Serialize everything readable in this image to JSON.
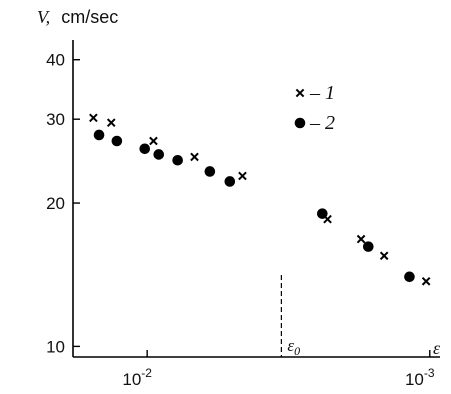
{
  "chart_data": {
    "type": "scatter",
    "title": "",
    "ylabel": {
      "symbol": "V,",
      "unit": "cm/sec"
    },
    "xlabel": {
      "symbol": "ε"
    },
    "x_axis": {
      "scale": "log",
      "reversed": true,
      "range": [
        0.0183,
        0.00092
      ],
      "ticks": [
        {
          "value": 0.01,
          "label_base": "10",
          "label_exp": "-2"
        },
        {
          "value": 0.001,
          "label_base": "10",
          "label_exp": "-3"
        }
      ]
    },
    "y_axis": {
      "scale": "log",
      "range": [
        9.5,
        44
      ],
      "ticks": [
        {
          "value": 10,
          "label": "10"
        },
        {
          "value": 20,
          "label": "20"
        },
        {
          "value": 30,
          "label": "30"
        },
        {
          "value": 40,
          "label": "40"
        }
      ]
    },
    "marker": {
      "value": 0.00335,
      "label_symbol": "ε",
      "label_sub": "0",
      "style": "dashed"
    },
    "legend": {
      "placement": "top-right",
      "entries": [
        {
          "marker": "x",
          "dash": "–",
          "label": "1"
        },
        {
          "marker": "circle",
          "dash": "–",
          "label": "2"
        }
      ]
    },
    "series": [
      {
        "name": "1",
        "marker": "x",
        "points": [
          [
            0.0155,
            30.2
          ],
          [
            0.0134,
            29.5
          ],
          [
            0.0095,
            27.0
          ],
          [
            0.0068,
            25.0
          ],
          [
            0.0046,
            22.8
          ],
          [
            0.0023,
            18.5
          ],
          [
            0.00175,
            16.8
          ],
          [
            0.00145,
            15.5
          ],
          [
            0.00103,
            13.7
          ]
        ]
      },
      {
        "name": "2",
        "marker": "circle",
        "points": [
          [
            0.0148,
            27.8
          ],
          [
            0.0128,
            27.0
          ],
          [
            0.0102,
            26.0
          ],
          [
            0.0091,
            25.3
          ],
          [
            0.0078,
            24.6
          ],
          [
            0.006,
            23.3
          ],
          [
            0.0051,
            22.2
          ],
          [
            0.0024,
            19.0
          ],
          [
            0.00165,
            16.2
          ],
          [
            0.00118,
            14.0
          ]
        ]
      }
    ]
  }
}
